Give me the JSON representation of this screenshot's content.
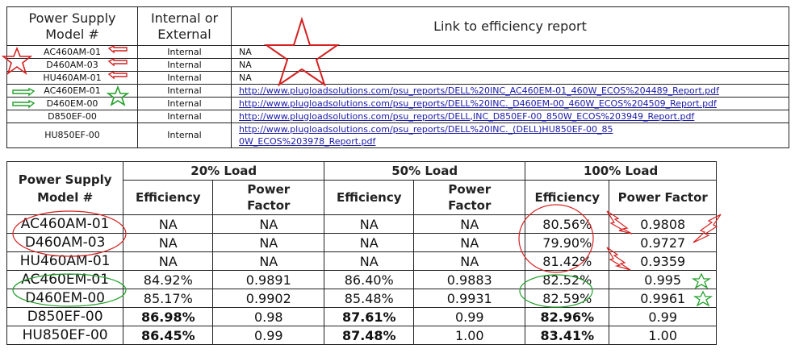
{
  "top_table": {
    "headers": [
      "Power Supply Model #",
      "Internal or External",
      "Link to efficiency report"
    ],
    "rows": [
      {
        "model": "AC460AM-01",
        "type": "Internal",
        "link": "NA",
        "is_link": false
      },
      {
        "model": "D460AM-03",
        "type": "Internal",
        "link": "NA",
        "is_link": false
      },
      {
        "model": "HU460AM-01",
        "type": "Internal",
        "link": "NA",
        "is_link": false
      },
      {
        "model": "AC460EM-01",
        "type": "Internal",
        "link": "http://www.plugloadsolutions.com/psu_reports/DELL%20INC_AC460EM-01_460W_ECOS%204489_Report.pdf",
        "is_link": true
      },
      {
        "model": "D460EM-00",
        "type": "Internal",
        "link": "http://www.plugloadsolutions.com/psu_reports/DELL%20INC._D460EM-00_460W_ECOS%204509_Report.pdf",
        "is_link": true
      },
      {
        "model": "D850EF-00",
        "type": "Internal",
        "link": "http://www.plugloadsolutions.com/psu_reports/DELL,INC_D850EF-00_850W_ECOS%203949_Report.pdf",
        "is_link": true
      },
      {
        "model": "HU850EF-00",
        "type": "Internal",
        "link": "http://www.plugloadsolutions.com/psu_reports/DELL%20INC._(DELL)HU850EF-00_850W_ECOS%203978_Report.pdf",
        "is_link": true
      }
    ]
  },
  "bottom_table": {
    "model_header": "Power Supply Model #",
    "groups": [
      "20% Load",
      "50% Load",
      "100% Load"
    ],
    "sub_headers": [
      "Efficiency",
      "Power Factor",
      "Efficiency",
      "Power Factor",
      "Efficiency",
      "Power Factor"
    ],
    "rows": [
      {
        "model": "AC460AM-01",
        "values": [
          "NA",
          "NA",
          "NA",
          "NA",
          "80.56%",
          "0.9808"
        ]
      },
      {
        "model": "D460AM-03",
        "values": [
          "NA",
          "NA",
          "NA",
          "NA",
          "79.90%",
          "0.9727"
        ]
      },
      {
        "model": "HU460AM-01",
        "values": [
          "NA",
          "NA",
          "NA",
          "NA",
          "81.42%",
          "0.9359"
        ]
      },
      {
        "model": "AC460EM-01",
        "values": [
          "84.92%",
          "0.9891",
          "86.40%",
          "0.9883",
          "82.52%",
          "0.995"
        ]
      },
      {
        "model": "D460EM-00",
        "values": [
          "85.17%",
          "0.9902",
          "85.48%",
          "0.9931",
          "82.59%",
          "0.9961"
        ]
      },
      {
        "model": "D850EF-00",
        "values": [
          "86.98%",
          "0.98",
          "87.61%",
          "0.99",
          "82.96%",
          "0.99"
        ],
        "bold": true
      },
      {
        "model": "HU850EF-00",
        "values": [
          "86.45%",
          "0.99",
          "87.48%",
          "1.00",
          "83.41%",
          "1.00"
        ],
        "bold": true
      }
    ]
  },
  "annotations": {
    "red": "#d42020",
    "green": "#22a02a",
    "marks": [
      "star-icon",
      "arrow-left-icon",
      "arrow-right-icon",
      "ellipse",
      "lightning-icon"
    ]
  }
}
